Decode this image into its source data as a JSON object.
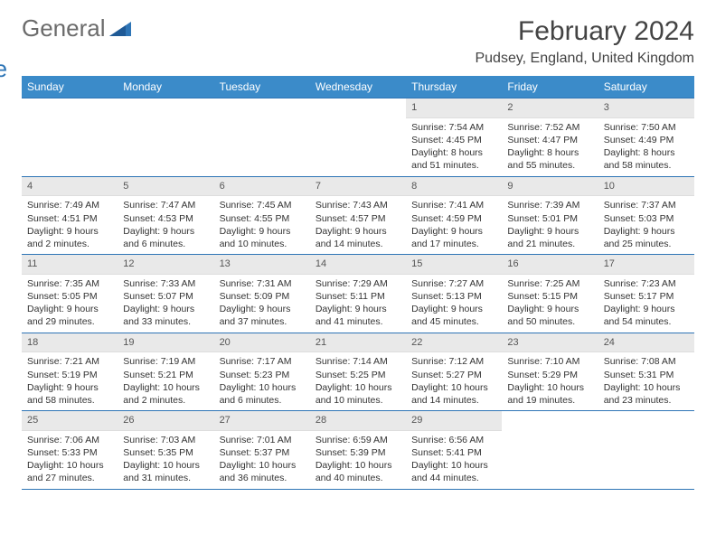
{
  "brand": {
    "part1": "General",
    "part2": "Blue"
  },
  "title": "February 2024",
  "location": "Pudsey, England, United Kingdom",
  "colors": {
    "header_bg": "#3b8bc9",
    "border": "#2e75b6",
    "daynum_bg": "#e9e9e9",
    "logo_blue": "#2e75b6",
    "logo_gray": "#6b6b6b"
  },
  "weekdays": [
    "Sunday",
    "Monday",
    "Tuesday",
    "Wednesday",
    "Thursday",
    "Friday",
    "Saturday"
  ],
  "weeks": [
    [
      null,
      null,
      null,
      null,
      {
        "n": "1",
        "sunrise": "7:54 AM",
        "sunset": "4:45 PM",
        "daylight": "8 hours and 51 minutes."
      },
      {
        "n": "2",
        "sunrise": "7:52 AM",
        "sunset": "4:47 PM",
        "daylight": "8 hours and 55 minutes."
      },
      {
        "n": "3",
        "sunrise": "7:50 AM",
        "sunset": "4:49 PM",
        "daylight": "8 hours and 58 minutes."
      }
    ],
    [
      {
        "n": "4",
        "sunrise": "7:49 AM",
        "sunset": "4:51 PM",
        "daylight": "9 hours and 2 minutes."
      },
      {
        "n": "5",
        "sunrise": "7:47 AM",
        "sunset": "4:53 PM",
        "daylight": "9 hours and 6 minutes."
      },
      {
        "n": "6",
        "sunrise": "7:45 AM",
        "sunset": "4:55 PM",
        "daylight": "9 hours and 10 minutes."
      },
      {
        "n": "7",
        "sunrise": "7:43 AM",
        "sunset": "4:57 PM",
        "daylight": "9 hours and 14 minutes."
      },
      {
        "n": "8",
        "sunrise": "7:41 AM",
        "sunset": "4:59 PM",
        "daylight": "9 hours and 17 minutes."
      },
      {
        "n": "9",
        "sunrise": "7:39 AM",
        "sunset": "5:01 PM",
        "daylight": "9 hours and 21 minutes."
      },
      {
        "n": "10",
        "sunrise": "7:37 AM",
        "sunset": "5:03 PM",
        "daylight": "9 hours and 25 minutes."
      }
    ],
    [
      {
        "n": "11",
        "sunrise": "7:35 AM",
        "sunset": "5:05 PM",
        "daylight": "9 hours and 29 minutes."
      },
      {
        "n": "12",
        "sunrise": "7:33 AM",
        "sunset": "5:07 PM",
        "daylight": "9 hours and 33 minutes."
      },
      {
        "n": "13",
        "sunrise": "7:31 AM",
        "sunset": "5:09 PM",
        "daylight": "9 hours and 37 minutes."
      },
      {
        "n": "14",
        "sunrise": "7:29 AM",
        "sunset": "5:11 PM",
        "daylight": "9 hours and 41 minutes."
      },
      {
        "n": "15",
        "sunrise": "7:27 AM",
        "sunset": "5:13 PM",
        "daylight": "9 hours and 45 minutes."
      },
      {
        "n": "16",
        "sunrise": "7:25 AM",
        "sunset": "5:15 PM",
        "daylight": "9 hours and 50 minutes."
      },
      {
        "n": "17",
        "sunrise": "7:23 AM",
        "sunset": "5:17 PM",
        "daylight": "9 hours and 54 minutes."
      }
    ],
    [
      {
        "n": "18",
        "sunrise": "7:21 AM",
        "sunset": "5:19 PM",
        "daylight": "9 hours and 58 minutes."
      },
      {
        "n": "19",
        "sunrise": "7:19 AM",
        "sunset": "5:21 PM",
        "daylight": "10 hours and 2 minutes."
      },
      {
        "n": "20",
        "sunrise": "7:17 AM",
        "sunset": "5:23 PM",
        "daylight": "10 hours and 6 minutes."
      },
      {
        "n": "21",
        "sunrise": "7:14 AM",
        "sunset": "5:25 PM",
        "daylight": "10 hours and 10 minutes."
      },
      {
        "n": "22",
        "sunrise": "7:12 AM",
        "sunset": "5:27 PM",
        "daylight": "10 hours and 14 minutes."
      },
      {
        "n": "23",
        "sunrise": "7:10 AM",
        "sunset": "5:29 PM",
        "daylight": "10 hours and 19 minutes."
      },
      {
        "n": "24",
        "sunrise": "7:08 AM",
        "sunset": "5:31 PM",
        "daylight": "10 hours and 23 minutes."
      }
    ],
    [
      {
        "n": "25",
        "sunrise": "7:06 AM",
        "sunset": "5:33 PM",
        "daylight": "10 hours and 27 minutes."
      },
      {
        "n": "26",
        "sunrise": "7:03 AM",
        "sunset": "5:35 PM",
        "daylight": "10 hours and 31 minutes."
      },
      {
        "n": "27",
        "sunrise": "7:01 AM",
        "sunset": "5:37 PM",
        "daylight": "10 hours and 36 minutes."
      },
      {
        "n": "28",
        "sunrise": "6:59 AM",
        "sunset": "5:39 PM",
        "daylight": "10 hours and 40 minutes."
      },
      {
        "n": "29",
        "sunrise": "6:56 AM",
        "sunset": "5:41 PM",
        "daylight": "10 hours and 44 minutes."
      },
      null,
      null
    ]
  ]
}
